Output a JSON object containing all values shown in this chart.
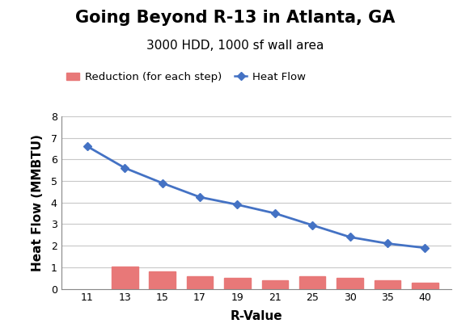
{
  "title": "Going Beyond R-13 in Atlanta, GA",
  "subtitle": "3000 HDD, 1000 sf wall area",
  "xlabel": "R-Value",
  "ylabel": "Heat Flow (MMBTU)",
  "r_values": [
    11,
    13,
    15,
    17,
    19,
    21,
    25,
    30,
    35,
    40
  ],
  "heat_flow": [
    6.6,
    5.6,
    4.9,
    4.25,
    3.9,
    3.5,
    2.95,
    2.4,
    2.1,
    1.9
  ],
  "reduction_x": [
    13,
    15,
    17,
    19,
    21,
    25,
    30,
    35,
    40
  ],
  "reduction_vals": [
    1.05,
    0.8,
    0.6,
    0.5,
    0.4,
    0.6,
    0.52,
    0.38,
    0.27
  ],
  "line_color": "#4472C4",
  "bar_color": "#E87878",
  "ylim": [
    0,
    8
  ],
  "yticks": [
    0,
    1,
    2,
    3,
    4,
    5,
    6,
    7,
    8
  ],
  "background_color": "#FFFFFF",
  "grid_color": "#C8C8C8",
  "title_fontsize": 15,
  "subtitle_fontsize": 11,
  "axis_label_fontsize": 11,
  "tick_fontsize": 9,
  "legend_fontsize": 9.5,
  "bar_width": 0.7
}
